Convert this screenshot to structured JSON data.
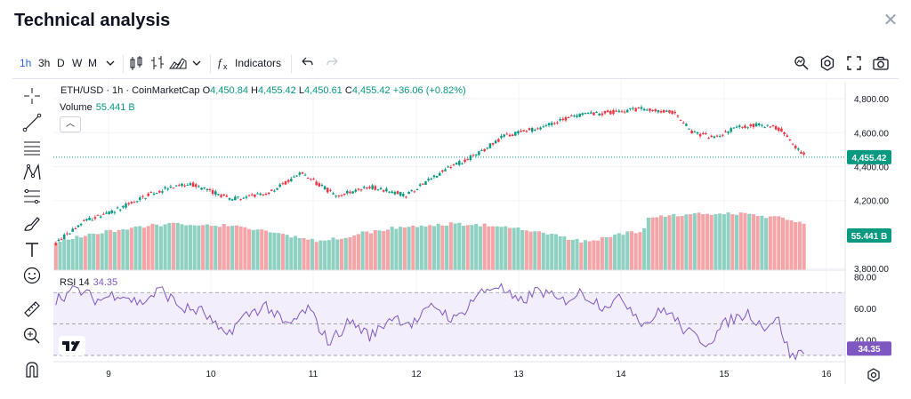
{
  "modal": {
    "title": "Technical analysis"
  },
  "toolbar": {
    "timeframes": [
      "1h",
      "3h",
      "D",
      "W",
      "M"
    ],
    "active_timeframe": "1h",
    "indicators_label": "Indicators"
  },
  "legend": {
    "symbol": "ETH/USD · 1h · CoinMarketCap",
    "open_label": "O",
    "open": "4,450.84",
    "high_label": "H",
    "high": "4,455.42",
    "low_label": "L",
    "low": "4,450.61",
    "close_label": "C",
    "close": "4,455.42",
    "change": "+36.06 (+0.82%)",
    "volume_label": "Volume",
    "volume_value": "55.441 B",
    "rsi_label": "RSI",
    "rsi_length": "14",
    "rsi_value": "34.35"
  },
  "chart_data": {
    "type": "candlestick",
    "title": "ETH/USD · 1h · CoinMarketCap",
    "x_tick_labels": [
      "9",
      "10",
      "11",
      "12",
      "13",
      "14",
      "15",
      "16"
    ],
    "price_axis": {
      "ticks": [
        "4,800.00",
        "4,600.00",
        "4,400.00",
        "4,200.00",
        "3,800.00"
      ],
      "ylim": [
        3790,
        4900
      ]
    },
    "current_price": 4455.42,
    "current_price_label": "4,455.42",
    "volume_label_value": "55.441 B",
    "rsi_axis": {
      "ticks": [
        "80.00",
        "60.00",
        "40.00"
      ],
      "ylim": [
        26,
        82
      ],
      "upper_band": 70,
      "middle": 50,
      "lower_band": 30
    },
    "rsi_current_label": "34.35",
    "price_anchors": [
      [
        0,
        3950
      ],
      [
        20,
        4080
      ],
      [
        45,
        4150
      ],
      [
        70,
        4250
      ],
      [
        95,
        4300
      ],
      [
        125,
        4210
      ],
      [
        150,
        4240
      ],
      [
        175,
        4360
      ],
      [
        200,
        4230
      ],
      [
        225,
        4280
      ],
      [
        250,
        4230
      ],
      [
        275,
        4370
      ],
      [
        300,
        4470
      ],
      [
        320,
        4580
      ],
      [
        345,
        4630
      ],
      [
        370,
        4700
      ],
      [
        395,
        4720
      ],
      [
        420,
        4740
      ],
      [
        440,
        4720
      ],
      [
        455,
        4600
      ],
      [
        470,
        4570
      ],
      [
        485,
        4630
      ],
      [
        500,
        4645
      ],
      [
        515,
        4630
      ],
      [
        527,
        4520
      ],
      [
        535,
        4455
      ]
    ],
    "rsi_anchors": [
      [
        0,
        66
      ],
      [
        15,
        72
      ],
      [
        30,
        65
      ],
      [
        45,
        70
      ],
      [
        60,
        63
      ],
      [
        75,
        72
      ],
      [
        90,
        60
      ],
      [
        105,
        58
      ],
      [
        120,
        42
      ],
      [
        135,
        55
      ],
      [
        150,
        62
      ],
      [
        165,
        48
      ],
      [
        180,
        60
      ],
      [
        195,
        38
      ],
      [
        210,
        52
      ],
      [
        225,
        42
      ],
      [
        240,
        55
      ],
      [
        255,
        50
      ],
      [
        270,
        62
      ],
      [
        285,
        52
      ],
      [
        300,
        68
      ],
      [
        315,
        75
      ],
      [
        330,
        63
      ],
      [
        345,
        72
      ],
      [
        360,
        64
      ],
      [
        375,
        70
      ],
      [
        390,
        62
      ],
      [
        405,
        66
      ],
      [
        420,
        50
      ],
      [
        435,
        60
      ],
      [
        450,
        45
      ],
      [
        465,
        38
      ],
      [
        480,
        52
      ],
      [
        495,
        57
      ],
      [
        505,
        48
      ],
      [
        515,
        54
      ],
      [
        525,
        28
      ],
      [
        535,
        34
      ]
    ]
  },
  "colors": {
    "up": "#089981",
    "down": "#f23645",
    "vol_up": "#8ed1c3",
    "vol_down": "#f5a5a8",
    "rsi": "#7e57c2",
    "rsi_band": "#f3eefb"
  }
}
